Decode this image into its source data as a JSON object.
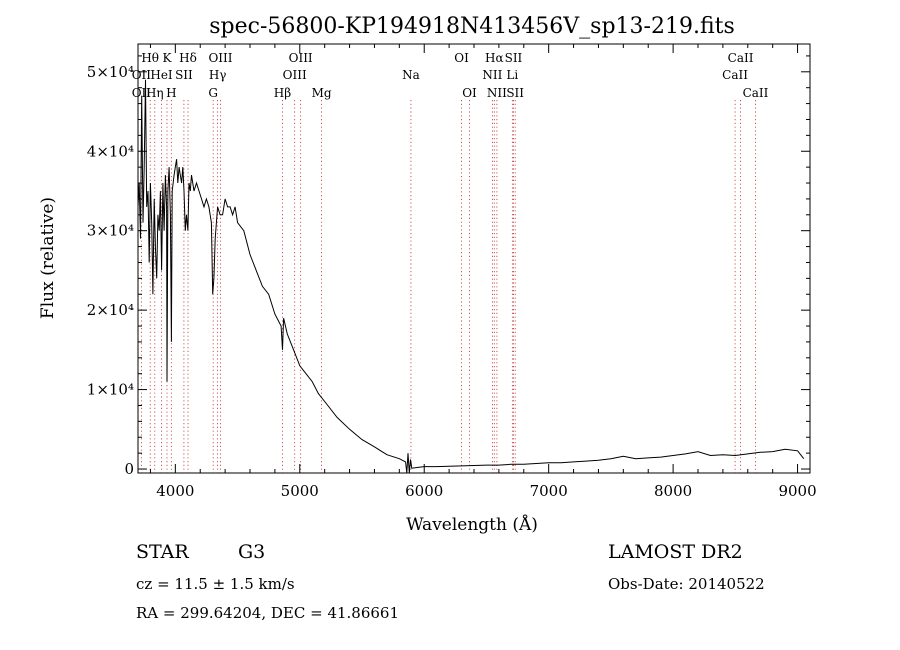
{
  "chart_data": {
    "type": "line",
    "title": "spec-56800-KP194918N413456V_sp13-219.fits",
    "xlabel": "Wavelength (Å)",
    "ylabel": "Flux (relative)",
    "xlim": [
      3700,
      9100
    ],
    "ylim": [
      -500,
      53500
    ],
    "xticks": [
      {
        "v": 4000,
        "label": "4000"
      },
      {
        "v": 5000,
        "label": "5000"
      },
      {
        "v": 6000,
        "label": "6000"
      },
      {
        "v": 7000,
        "label": "7000"
      },
      {
        "v": 8000,
        "label": "8000"
      },
      {
        "v": 9000,
        "label": "9000"
      }
    ],
    "yticks": [
      {
        "v": 0,
        "label": "0"
      },
      {
        "v": 10000,
        "label": "1×10⁴"
      },
      {
        "v": 20000,
        "label": "2×10⁴"
      },
      {
        "v": 30000,
        "label": "3×10⁴"
      },
      {
        "v": 40000,
        "label": "4×10⁴"
      },
      {
        "v": 50000,
        "label": "5×10⁴"
      }
    ],
    "grid": false,
    "series": [
      {
        "x": [
          3700,
          3710,
          3720,
          3730,
          3740,
          3750,
          3760,
          3770,
          3780,
          3790,
          3800,
          3810,
          3820,
          3830,
          3840,
          3850,
          3860,
          3870,
          3880,
          3890,
          3900,
          3910,
          3920,
          3930,
          3933,
          3940,
          3950,
          3960,
          3968,
          3975,
          3990,
          4000,
          4010,
          4020,
          4030,
          4040,
          4050,
          4060,
          4070,
          4080,
          4090,
          4101,
          4110,
          4120,
          4130,
          4150,
          4170,
          4190,
          4210,
          4230,
          4250,
          4270,
          4290,
          4300,
          4310,
          4320,
          4340,
          4360,
          4380,
          4400,
          4420,
          4440,
          4460,
          4480,
          4500,
          4550,
          4600,
          4650,
          4700,
          4750,
          4800,
          4850,
          4861,
          4870,
          4900,
          4950,
          5000,
          5050,
          5100,
          5150,
          5200,
          5300,
          5400,
          5500,
          5600,
          5700,
          5800,
          5850,
          5860,
          5870,
          5880,
          5890,
          5900,
          5950,
          6000,
          6100,
          6200,
          6300,
          6400,
          6500,
          6600,
          6700,
          6800,
          6900,
          7000,
          7100,
          7200,
          7300,
          7400,
          7500,
          7600,
          7700,
          7800,
          7900,
          8000,
          8100,
          8200,
          8300,
          8400,
          8500,
          8600,
          8700,
          8800,
          8900,
          9000,
          9050
        ],
        "y": [
          33000,
          36000,
          29000,
          47000,
          31000,
          38000,
          49000,
          33000,
          35000,
          26000,
          36000,
          31000,
          22000,
          34000,
          28000,
          24000,
          32000,
          30000,
          35000,
          25000,
          36000,
          30000,
          37000,
          33000,
          11000,
          35000,
          38000,
          32000,
          16000,
          35000,
          37000,
          38000,
          39000,
          36000,
          38000,
          37000,
          36000,
          38000,
          35000,
          30000,
          32000,
          30000,
          36000,
          35000,
          37000,
          35000,
          36000,
          35000,
          34000,
          33000,
          34000,
          33000,
          31000,
          22000,
          24000,
          29000,
          33000,
          32000,
          32000,
          34000,
          33000,
          33000,
          32000,
          33000,
          31000,
          30000,
          27000,
          25000,
          23000,
          22000,
          19500,
          18000,
          15000,
          19000,
          17000,
          15000,
          13000,
          12000,
          11000,
          9500,
          8500,
          6500,
          5000,
          3700,
          2800,
          1800,
          1300,
          900,
          -500,
          2000,
          -500,
          1200,
          100,
          200,
          300,
          300,
          350,
          400,
          450,
          500,
          500,
          600,
          600,
          700,
          800,
          800,
          900,
          1000,
          1100,
          1300,
          1600,
          1300,
          1400,
          1500,
          1700,
          1900,
          2200,
          1700,
          1800,
          1700,
          1900,
          2100,
          2200,
          2500,
          2300,
          1300
        ]
      }
    ],
    "annotations": [
      {
        "label": "Hθ",
        "x": 3798,
        "row": 1
      },
      {
        "label": "OII",
        "x": 3727,
        "row": 2
      },
      {
        "label": "OII",
        "x": 3727,
        "row": 3
      },
      {
        "label": "K",
        "x": 3933,
        "row": 1
      },
      {
        "label": "HeI",
        "x": 3889,
        "row": 2
      },
      {
        "label": "Hη",
        "x": 3835,
        "row": 3
      },
      {
        "label": "SII",
        "x": 4069,
        "row": 2
      },
      {
        "label": "H",
        "x": 3968,
        "row": 3
      },
      {
        "label": "Hδ",
        "x": 4102,
        "row": 1
      },
      {
        "label": "OIII",
        "x": 4363,
        "row": 1
      },
      {
        "label": "Hγ",
        "x": 4340,
        "row": 2
      },
      {
        "label": "G",
        "x": 4304,
        "row": 3
      },
      {
        "label": "OIII",
        "x": 5007,
        "row": 1
      },
      {
        "label": "OIII",
        "x": 4959,
        "row": 2
      },
      {
        "label": "Hβ",
        "x": 4861,
        "row": 3
      },
      {
        "label": "Mg",
        "x": 5175,
        "row": 3
      },
      {
        "label": "Na",
        "x": 5893,
        "row": 2
      },
      {
        "label": "OI",
        "x": 6300,
        "row": 1
      },
      {
        "label": "OI",
        "x": 6364,
        "row": 3
      },
      {
        "label": "Hα",
        "x": 6563,
        "row": 1
      },
      {
        "label": "SII",
        "x": 6717,
        "row": 1
      },
      {
        "label": "NII",
        "x": 6548,
        "row": 2
      },
      {
        "label": "Li",
        "x": 6708,
        "row": 2
      },
      {
        "label": "NII",
        "x": 6584,
        "row": 3
      },
      {
        "label": "SII",
        "x": 6731,
        "row": 3
      },
      {
        "label": "CaII",
        "x": 8542,
        "row": 1
      },
      {
        "label": "CaII",
        "x": 8498,
        "row": 2
      },
      {
        "label": "CaII",
        "x": 8662,
        "row": 3
      }
    ],
    "annotation_lines": [
      3727,
      3798,
      3835,
      3889,
      3933,
      3968,
      4069,
      4102,
      4304,
      4340,
      4363,
      4861,
      4959,
      5007,
      5175,
      5893,
      6300,
      6364,
      6548,
      6563,
      6584,
      6708,
      6717,
      6731,
      8498,
      8542,
      8662
    ]
  },
  "info": {
    "object_class": "STAR",
    "subclass": "G3",
    "survey": "LAMOST DR2",
    "redshift": "cz = 11.5 ± 1.5 km/s",
    "obs_date": "Obs-Date: 20140522",
    "coords": "RA = 299.64204, DEC =  41.86661"
  }
}
